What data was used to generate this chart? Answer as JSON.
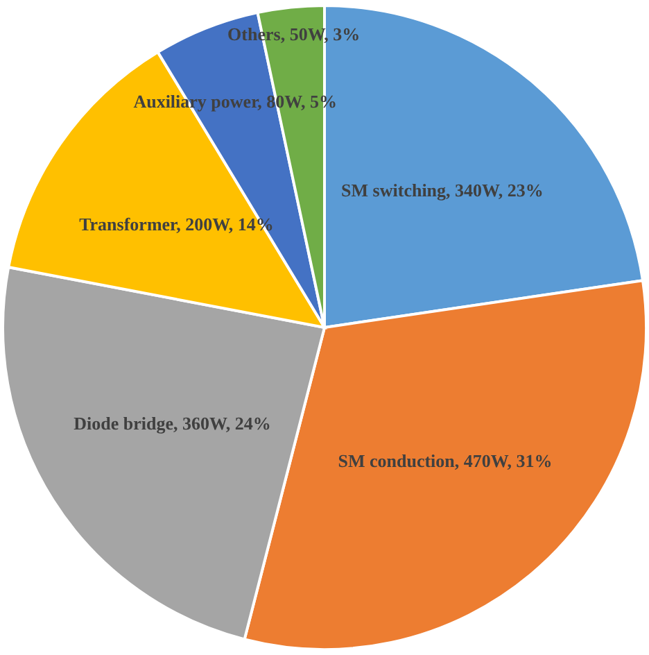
{
  "chart_data": {
    "type": "pie",
    "categories": [
      "SM switching",
      "SM conduction",
      "Diode bridge",
      "Transformer",
      "Auxiliary power",
      "Others"
    ],
    "values": [
      340,
      470,
      360,
      200,
      80,
      50
    ],
    "colors": [
      "#5b9bd5",
      "#ed7d31",
      "#a5a5a5",
      "#ffc000",
      "#4472c4",
      "#70ad47"
    ],
    "value_labels": [
      "340W, 23%",
      "470W, 31%",
      "360W, 24%",
      "200W, 14%",
      "80W, 5%",
      "50W, 3%"
    ]
  }
}
